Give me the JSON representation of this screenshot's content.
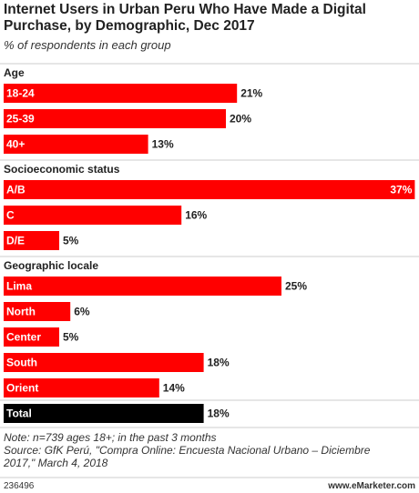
{
  "chart_data": {
    "type": "bar",
    "title": "Internet Users in Urban Peru Who Have Made a Digital Purchase, by Demographic, Dec 2017",
    "subtitle": "% of respondents in each group",
    "color": "#ff0000",
    "total_color": "#000000",
    "groups": [
      {
        "name": "Age",
        "categories": [
          "18-24",
          "25-39",
          "40+"
        ],
        "values": [
          21,
          20,
          13
        ],
        "value_labels": [
          "21%",
          "20%",
          "13%"
        ]
      },
      {
        "name": "Socioeconomic status",
        "categories": [
          "A/B",
          "C",
          "D/E"
        ],
        "values": [
          37,
          16,
          5
        ],
        "value_labels": [
          "37%",
          "16%",
          "5%"
        ]
      },
      {
        "name": "Geographic locale",
        "categories": [
          "Lima",
          "North",
          "Center",
          "South",
          "Orient"
        ],
        "values": [
          25,
          6,
          5,
          18,
          14
        ],
        "value_labels": [
          "25%",
          "6%",
          "5%",
          "18%",
          "14%"
        ]
      }
    ],
    "total": {
      "category": "Total",
      "value": 18,
      "value_label": "18%"
    },
    "note": "Note: n=739 ages 18+; in the past 3 months",
    "source": "Source: GfK Perú, \"Compra Online: Encuesta Nacional Urbano – Diciembre 2017,\" March 4, 2018",
    "chart_id": "236496",
    "brand": "www.eMarketer.com"
  }
}
